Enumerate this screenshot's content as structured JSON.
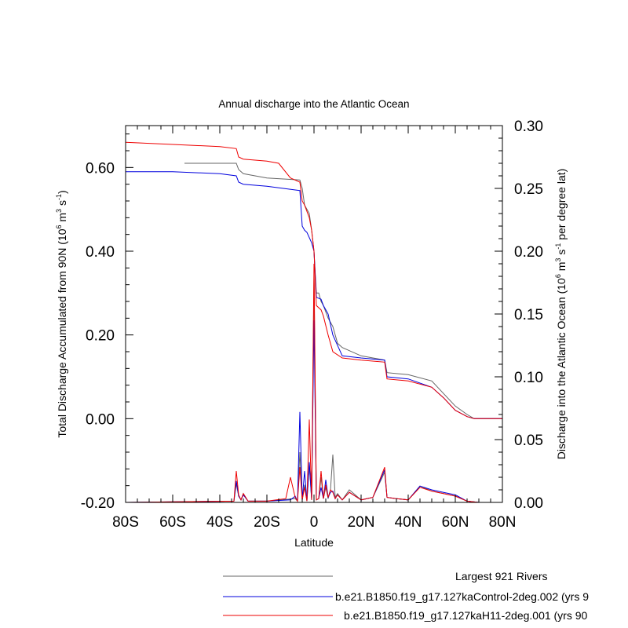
{
  "chart_data": {
    "type": "line",
    "title": "Annual discharge into the Atlantic Ocean",
    "xlabel": "Latitude",
    "ylabel_left": "Total Discharge Accumulated from 90N (10",
    "ylabel_left_sup1": "6",
    "ylabel_left_mid": " m",
    "ylabel_left_sup2": "3",
    "ylabel_left_mid2": " s",
    "ylabel_left_sup3": "-1",
    "ylabel_left_end": ")",
    "ylabel_right": "Discharge into the Atlantic Ocean (10",
    "ylabel_right_sup1": "6",
    "ylabel_right_mid": " m",
    "ylabel_right_sup2": "3",
    "ylabel_right_mid2": " s",
    "ylabel_right_sup3": "-1",
    "ylabel_right_end": " per degree lat)",
    "xlim": [
      -80,
      80
    ],
    "ylim_left": [
      -0.2,
      0.7
    ],
    "ylim_right": [
      0.0,
      0.3
    ],
    "x_ticks": [
      {
        "value": -80,
        "label": "80S"
      },
      {
        "value": -60,
        "label": "60S"
      },
      {
        "value": -40,
        "label": "40S"
      },
      {
        "value": -20,
        "label": "20S"
      },
      {
        "value": 0,
        "label": "0"
      },
      {
        "value": 20,
        "label": "20N"
      },
      {
        "value": 40,
        "label": "40N"
      },
      {
        "value": 60,
        "label": "60N"
      },
      {
        "value": 80,
        "label": "80N"
      }
    ],
    "y_left_ticks": [
      {
        "value": -0.2,
        "label": "-0.20"
      },
      {
        "value": 0.0,
        "label": "0.00"
      },
      {
        "value": 0.2,
        "label": "0.20"
      },
      {
        "value": 0.4,
        "label": "0.40"
      },
      {
        "value": 0.6,
        "label": "0.60"
      }
    ],
    "y_right_ticks": [
      {
        "value": 0.0,
        "label": "0.00"
      },
      {
        "value": 0.05,
        "label": "0.05"
      },
      {
        "value": 0.1,
        "label": "0.10"
      },
      {
        "value": 0.15,
        "label": "0.15"
      },
      {
        "value": 0.2,
        "label": "0.20"
      },
      {
        "value": 0.25,
        "label": "0.25"
      },
      {
        "value": 0.3,
        "label": "0.30"
      }
    ],
    "legend_placement": "bottom-right, below plot",
    "series": [
      {
        "name": "Largest 921 Rivers",
        "color": "#666666",
        "axis": "left",
        "x": [
          -55,
          -33,
          -32,
          -30,
          -20,
          -6,
          -5,
          -4,
          -2,
          -1,
          0,
          1,
          2,
          3,
          4,
          6,
          8,
          10,
          12,
          20,
          30,
          31,
          40,
          50,
          55,
          60,
          65,
          68,
          80
        ],
        "values": [
          0.61,
          0.61,
          0.595,
          0.585,
          0.575,
          0.57,
          0.55,
          0.51,
          0.49,
          0.45,
          0.4,
          0.3,
          0.3,
          0.28,
          0.27,
          0.24,
          0.22,
          0.18,
          0.17,
          0.15,
          0.14,
          0.11,
          0.105,
          0.09,
          0.06,
          0.03,
          0.01,
          0.0,
          0.0
        ]
      },
      {
        "name": "b.e21.B1850.f19_g17.127kaControl-2deg.002 (yrs 9",
        "color": "#0000dd",
        "axis": "left",
        "x": [
          -80,
          -60,
          -40,
          -33,
          -32,
          -30,
          -20,
          -6,
          -5,
          -4,
          -3,
          -1,
          0,
          1,
          3,
          4,
          6,
          8,
          12,
          20,
          30,
          31,
          40,
          50,
          55,
          60,
          65,
          68,
          80
        ],
        "values": [
          0.59,
          0.59,
          0.585,
          0.58,
          0.565,
          0.56,
          0.555,
          0.545,
          0.46,
          0.45,
          0.445,
          0.42,
          0.4,
          0.29,
          0.285,
          0.27,
          0.25,
          0.2,
          0.15,
          0.145,
          0.14,
          0.1,
          0.095,
          0.075,
          0.05,
          0.02,
          0.005,
          0.0,
          0.0
        ]
      },
      {
        "name": "b.e21.B1850.f19_g17.127kaH11-2deg.001 (yrs 90",
        "color": "#ee0000",
        "axis": "left",
        "x": [
          -80,
          -60,
          -40,
          -33,
          -32,
          -30,
          -20,
          -15,
          -10,
          -6,
          -5,
          -4,
          -2,
          -1,
          0,
          1,
          3,
          4,
          6,
          8,
          12,
          20,
          30,
          31,
          40,
          50,
          55,
          60,
          65,
          68,
          80
        ],
        "values": [
          0.66,
          0.655,
          0.65,
          0.645,
          0.625,
          0.62,
          0.615,
          0.61,
          0.575,
          0.565,
          0.52,
          0.51,
          0.48,
          0.45,
          0.4,
          0.27,
          0.26,
          0.245,
          0.2,
          0.16,
          0.145,
          0.14,
          0.135,
          0.095,
          0.09,
          0.075,
          0.05,
          0.02,
          0.005,
          0.0,
          0.0
        ]
      },
      {
        "name": "Largest 921 Rivers",
        "color": "#666666",
        "axis": "right",
        "x": [
          -80,
          -34,
          -33,
          -32,
          -31,
          -30,
          -28,
          -20,
          -8,
          -7,
          -6,
          -5,
          -4,
          -3,
          -2,
          -1,
          0,
          1,
          2,
          3,
          4,
          5,
          6,
          7,
          8,
          9,
          10,
          12,
          15,
          20,
          25,
          30,
          31,
          35,
          40,
          45,
          50,
          55,
          60,
          65,
          70,
          80
        ],
        "values": [
          0,
          0.001,
          0.015,
          0.005,
          0.002,
          0.007,
          0.001,
          0.001,
          0.003,
          0.001,
          0.04,
          0.002,
          0.014,
          0.001,
          0.03,
          0.002,
          0.18,
          0.002,
          0.003,
          0.02,
          0.003,
          0.012,
          0.003,
          0.01,
          0.038,
          0.004,
          0.007,
          0.002,
          0.01,
          0.002,
          0.004,
          0.024,
          0.004,
          0.003,
          0.002,
          0.013,
          0.009,
          0.007,
          0.005,
          0.001,
          0.0,
          0
        ]
      },
      {
        "name": "b.e21.B1850.f19_g17.127kaControl-2deg.002 (yrs 9",
        "color": "#0000dd",
        "axis": "right",
        "x": [
          -80,
          -34,
          -33,
          -32,
          -31,
          -30,
          -28,
          -20,
          -10,
          -8,
          -7,
          -6,
          -5,
          -4,
          -3,
          -2,
          -1,
          0,
          1,
          2,
          3,
          4,
          5,
          6,
          7,
          8,
          9,
          10,
          12,
          15,
          20,
          25,
          30,
          31,
          35,
          40,
          45,
          50,
          55,
          60,
          65,
          70,
          80
        ],
        "values": [
          0,
          0.001,
          0.017,
          0.005,
          0.002,
          0.006,
          0.001,
          0.001,
          0.002,
          0.005,
          0.001,
          0.072,
          0.002,
          0.025,
          0.001,
          0.032,
          0.002,
          0.145,
          0.002,
          0.003,
          0.012,
          0.003,
          0.018,
          0.004,
          0.008,
          0.009,
          0.003,
          0.006,
          0.002,
          0.008,
          0.002,
          0.004,
          0.026,
          0.004,
          0.003,
          0.002,
          0.013,
          0.01,
          0.008,
          0.006,
          0.001,
          0.0,
          0
        ]
      },
      {
        "name": "b.e21.B1850.f19_g17.127kaH11-2deg.001 (yrs 90",
        "color": "#ee0000",
        "axis": "right",
        "x": [
          -80,
          -34,
          -33,
          -32,
          -31,
          -30,
          -28,
          -20,
          -12,
          -10,
          -8,
          -7,
          -6,
          -5,
          -4,
          -3,
          -2,
          -1,
          0,
          1,
          2,
          3,
          4,
          5,
          6,
          7,
          8,
          9,
          10,
          12,
          15,
          20,
          25,
          30,
          31,
          35,
          40,
          45,
          50,
          55,
          60,
          65,
          70,
          80
        ],
        "values": [
          0,
          0.001,
          0.025,
          0.006,
          0.002,
          0.007,
          0.001,
          0.001,
          0.003,
          0.02,
          0.004,
          0.001,
          0.028,
          0.002,
          0.012,
          0.001,
          0.066,
          0.002,
          0.19,
          0.002,
          0.003,
          0.025,
          0.003,
          0.014,
          0.004,
          0.01,
          0.008,
          0.003,
          0.006,
          0.002,
          0.008,
          0.002,
          0.004,
          0.028,
          0.004,
          0.003,
          0.002,
          0.012,
          0.009,
          0.007,
          0.005,
          0.001,
          0.0,
          0
        ]
      }
    ],
    "legend": [
      {
        "label": "Largest 921 Rivers",
        "color": "#666666"
      },
      {
        "label": "b.e21.B1850.f19_g17.127kaControl-2deg.002 (yrs 9",
        "color": "#0000dd"
      },
      {
        "label": "b.e21.B1850.f19_g17.127kaH11-2deg.001 (yrs 90",
        "color": "#ee0000"
      }
    ]
  }
}
